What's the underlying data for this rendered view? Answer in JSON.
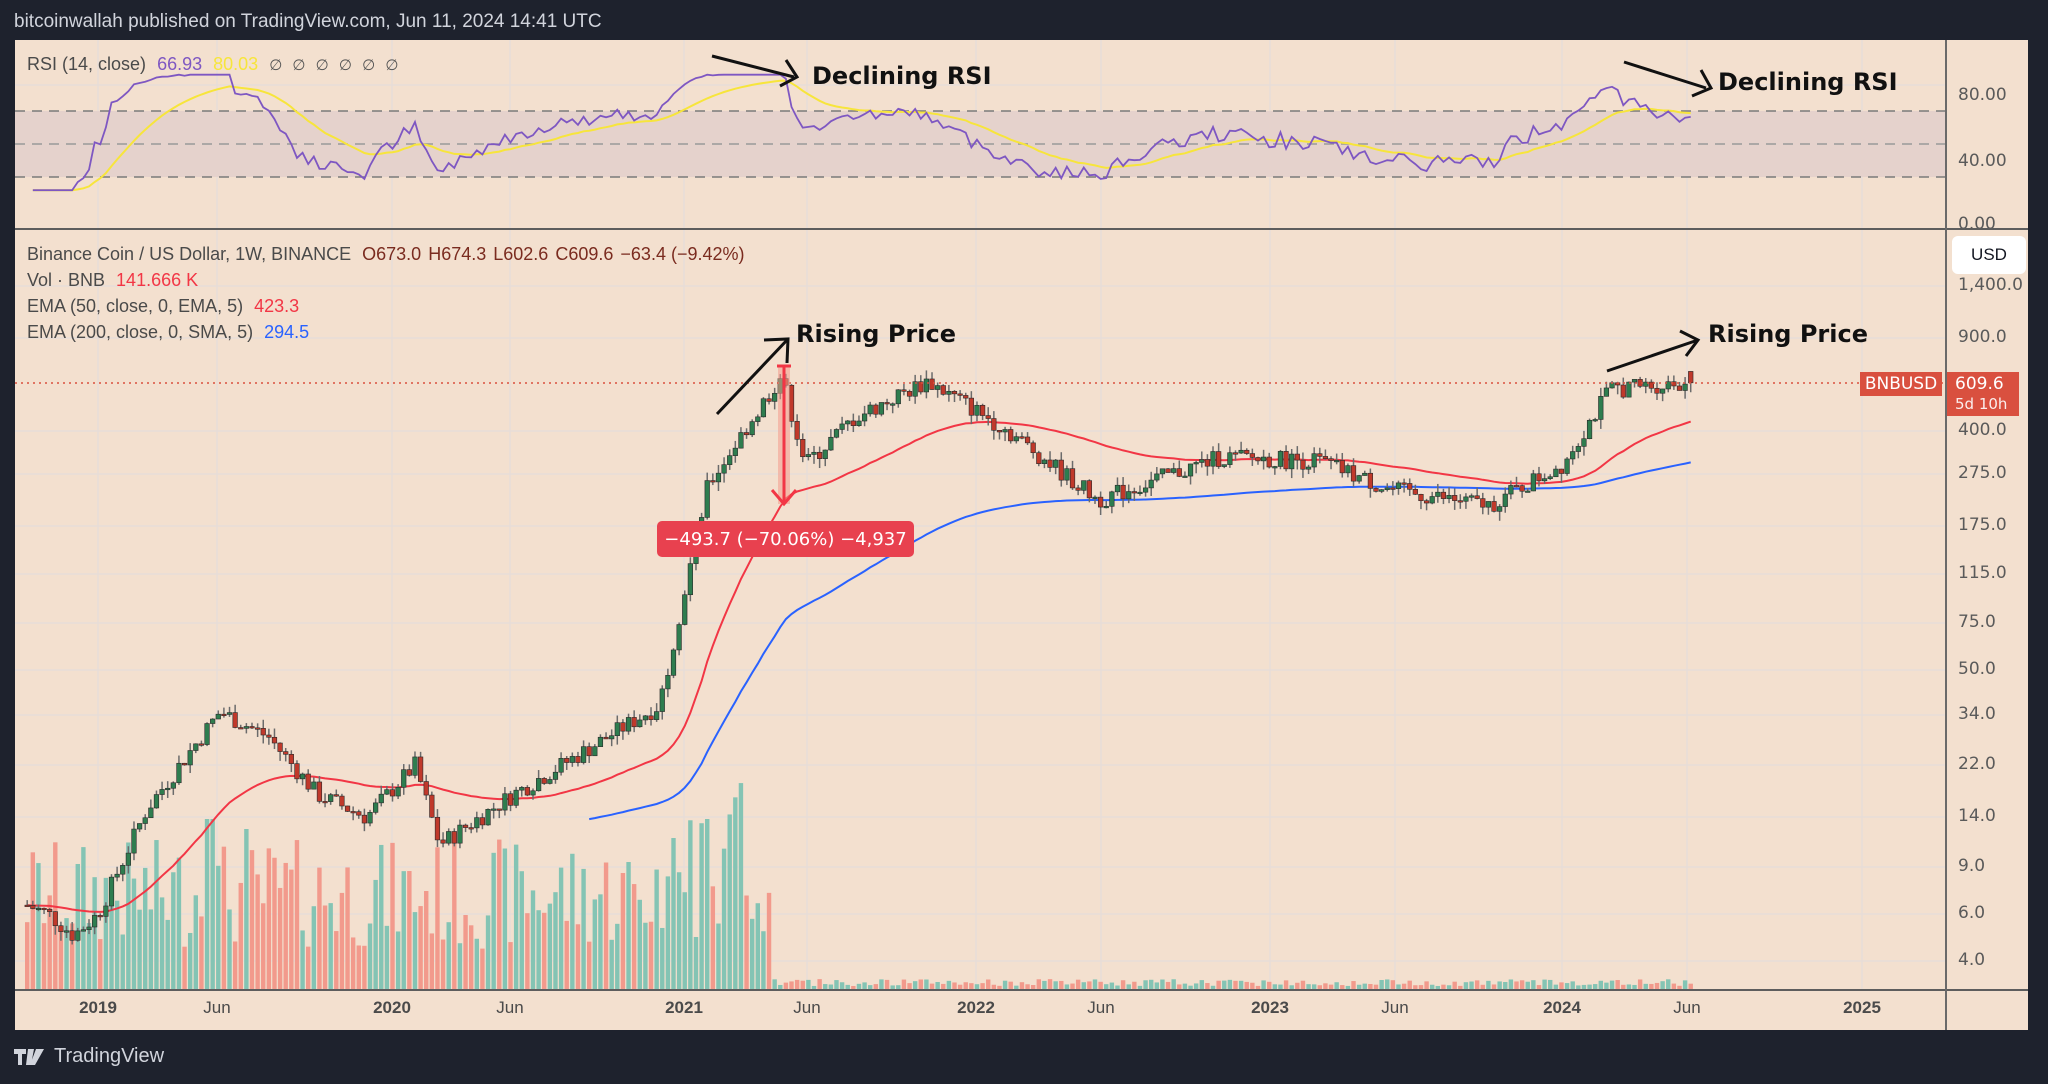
{
  "publish_bar": "bitcoinwallah published on TradingView.com, Jun 11, 2024 14:41 UTC",
  "rsi_pane": {
    "label": "RSI (14, close)",
    "rsi_value": "66.93",
    "rsi_ma_value": "80.03",
    "placeholders": "∅ ∅ ∅ ∅ ∅ ∅",
    "axis": [
      "80.00",
      "40.00",
      "0.00"
    ],
    "annotation": "Declining RSI"
  },
  "price_pane": {
    "symbol_line": "Binance Coin / US Dollar, 1W, BINANCE",
    "open": "O673.0",
    "high": "H674.3",
    "low": "L602.6",
    "close": "C609.6",
    "change": "−63.4 (−9.42%)",
    "vol_label": "Vol · BNB",
    "vol_value": "141.666 K",
    "ema50_label": "EMA (50, close, 0, EMA, 5)",
    "ema50_value": "423.3",
    "ema200_label": "EMA (200, close, 0, SMA, 5)",
    "ema200_value": "294.5",
    "currency_button": "USD",
    "symbol_tag": "BNBUSD",
    "last_price": "609.6",
    "countdown": "5d 10h",
    "measure_label": "−493.7 (−70.06%) −4,937",
    "annotation": "Rising Price",
    "price_axis": [
      "1,400.0",
      "900.0",
      "400.0",
      "275.0",
      "175.0",
      "115.0",
      "75.0",
      "50.0",
      "34.0",
      "22.0",
      "14.0",
      "9.0",
      "6.0",
      "4.0"
    ]
  },
  "time_axis": [
    {
      "label": "2019",
      "year": true
    },
    {
      "label": "Jun",
      "year": false
    },
    {
      "label": "2020",
      "year": true
    },
    {
      "label": "Jun",
      "year": false
    },
    {
      "label": "2021",
      "year": true
    },
    {
      "label": "Jun",
      "year": false
    },
    {
      "label": "2022",
      "year": true
    },
    {
      "label": "Jun",
      "year": false
    },
    {
      "label": "2023",
      "year": true
    },
    {
      "label": "Jun",
      "year": false
    },
    {
      "label": "2024",
      "year": true
    },
    {
      "label": "Jun",
      "year": false
    },
    {
      "label": "2025",
      "year": true
    }
  ],
  "footer": {
    "brand": "TradingView"
  },
  "colors": {
    "background": "#f3e0cf",
    "up_candle": "#2e7d4f",
    "down_candle": "#c0392b",
    "ema50": "#f23645",
    "ema200": "#2962ff",
    "rsi": "#7e57c2",
    "rsi_ma": "#f7e53b",
    "vol_up": "#84c4b4",
    "vol_down": "#f29a8c"
  },
  "chart_data": {
    "type": "candlestick",
    "title": "Binance Coin / US Dollar, 1W, BINANCE",
    "xlabel": "",
    "ylabel": "USD (log scale)",
    "x_ticks": [
      "2019",
      "Jun",
      "2020",
      "Jun",
      "2021",
      "Jun",
      "2022",
      "Jun",
      "2023",
      "Jun",
      "2024",
      "Jun",
      "2025"
    ],
    "y_ticks": [
      1400,
      900,
      400,
      275,
      175,
      115,
      75,
      50,
      34,
      22,
      14,
      9,
      6,
      4
    ],
    "ylim": [
      3.5,
      1700
    ],
    "last_bar": {
      "open": 673.0,
      "high": 674.3,
      "low": 602.6,
      "close": 609.6,
      "change": -63.4,
      "change_pct": -9.42
    },
    "price_path_approx": [
      {
        "date": "2018-11",
        "close": 6.0
      },
      {
        "date": "2018-12",
        "close": 5.0
      },
      {
        "date": "2019-01",
        "close": 6.0
      },
      {
        "date": "2019-03",
        "close": 15.0
      },
      {
        "date": "2019-06",
        "close": 35.0
      },
      {
        "date": "2019-08",
        "close": 28.0
      },
      {
        "date": "2019-10",
        "close": 17.0
      },
      {
        "date": "2019-12",
        "close": 14.0
      },
      {
        "date": "2020-02",
        "close": 22.0
      },
      {
        "date": "2020-03",
        "close": 11.0
      },
      {
        "date": "2020-06",
        "close": 17.0
      },
      {
        "date": "2020-09",
        "close": 25.0
      },
      {
        "date": "2020-12",
        "close": 37.0
      },
      {
        "date": "2021-02",
        "close": 250.0
      },
      {
        "date": "2021-05",
        "close": 650.0
      },
      {
        "date": "2021-06",
        "close": 300.0
      },
      {
        "date": "2021-08",
        "close": 450.0
      },
      {
        "date": "2021-11",
        "close": 620.0
      },
      {
        "date": "2022-02",
        "close": 420.0
      },
      {
        "date": "2022-06",
        "close": 220.0
      },
      {
        "date": "2022-11",
        "close": 320.0
      },
      {
        "date": "2023-03",
        "close": 310.0
      },
      {
        "date": "2023-06",
        "close": 240.0
      },
      {
        "date": "2023-10",
        "close": 210.0
      },
      {
        "date": "2024-01",
        "close": 300.0
      },
      {
        "date": "2024-03",
        "close": 580.0
      },
      {
        "date": "2024-06",
        "close": 609.6
      }
    ],
    "series": [
      {
        "name": "EMA 50",
        "last": 423.3
      },
      {
        "name": "EMA 200",
        "last": 294.5
      },
      {
        "name": "RSI 14",
        "last": 66.93
      },
      {
        "name": "RSI MA",
        "last": 80.03
      },
      {
        "name": "Volume",
        "last": "141.666K"
      }
    ],
    "rsi_levels": [
      70,
      50,
      30
    ],
    "annotations": [
      "Rising Price (2021)",
      "Declining RSI (2021)",
      "Rising Price (2024)",
      "Declining RSI (2024)",
      "Drawdown −493.7 (−70.06%)"
    ],
    "grid": true
  }
}
